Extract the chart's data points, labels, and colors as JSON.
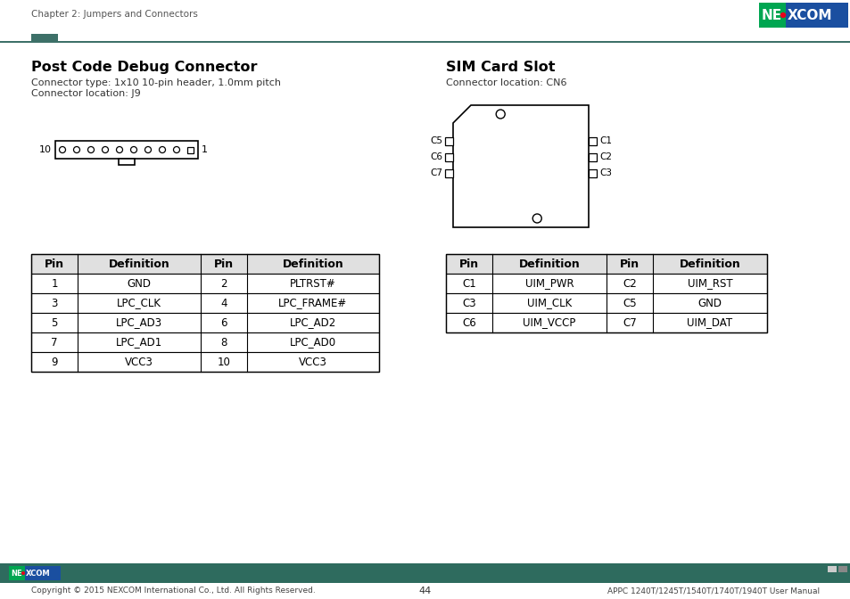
{
  "page_title_left": "Chapter 2: Jumpers and Connectors",
  "page_number": "44",
  "footer_text": "Copyright © 2015 NEXCOM International Co., Ltd. All Rights Reserved.",
  "footer_right": "APPC 1240T/1245T/1540T/1740T/1940T User Manual",
  "bg_color": "#ffffff",
  "header_line_color": "#3d7068",
  "header_bar_color": "#3d7068",
  "footer_bar_color": "#2e6b5e",
  "section1_title": "Post Code Debug Connector",
  "section1_sub1": "Connector type: 1x10 10-pin header, 1.0mm pitch",
  "section1_sub2": "Connector location: J9",
  "section2_title": "SIM Card Slot",
  "section2_sub1": "Connector location: CN6",
  "table1_headers": [
    "Pin",
    "Definition",
    "Pin",
    "Definition"
  ],
  "table1_rows": [
    [
      "1",
      "GND",
      "2",
      "PLTRST#"
    ],
    [
      "3",
      "LPC_CLK",
      "4",
      "LPC_FRAME#"
    ],
    [
      "5",
      "LPC_AD3",
      "6",
      "LPC_AD2"
    ],
    [
      "7",
      "LPC_AD1",
      "8",
      "LPC_AD0"
    ],
    [
      "9",
      "VCC3",
      "10",
      "VCC3"
    ]
  ],
  "table2_headers": [
    "Pin",
    "Definition",
    "Pin",
    "Definition"
  ],
  "table2_rows": [
    [
      "C1",
      "UIM_PWR",
      "C2",
      "UIM_RST"
    ],
    [
      "C3",
      "UIM_CLK",
      "C5",
      "GND"
    ],
    [
      "C6",
      "UIM_VCCP",
      "C7",
      "UIM_DAT"
    ]
  ],
  "nexcom_green": "#00a651",
  "nexcom_blue": "#1a4fa0",
  "nexcom_dot_red": "#e8001c"
}
